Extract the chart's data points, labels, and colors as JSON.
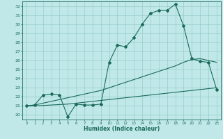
{
  "background_color": "#c0e8e8",
  "grid_color": "#98cccc",
  "line_color": "#1a6b5a",
  "xlabel": "Humidex (Indice chaleur)",
  "xlim": [
    -0.5,
    23.5
  ],
  "ylim": [
    19.5,
    32.5
  ],
  "xticks": [
    0,
    1,
    2,
    3,
    4,
    5,
    6,
    7,
    8,
    9,
    10,
    11,
    12,
    13,
    14,
    15,
    16,
    17,
    18,
    19,
    20,
    21,
    22,
    23
  ],
  "yticks": [
    20,
    21,
    22,
    23,
    24,
    25,
    26,
    27,
    28,
    29,
    30,
    31,
    32
  ],
  "series1_x": [
    0,
    1,
    2,
    3,
    4,
    5,
    6,
    7,
    8,
    9,
    10,
    11,
    12,
    13,
    14,
    15,
    16,
    17,
    18,
    19,
    20,
    21,
    22,
    23
  ],
  "series1_y": [
    21.0,
    21.1,
    22.2,
    22.3,
    22.2,
    19.8,
    21.2,
    21.1,
    21.1,
    21.2,
    25.8,
    27.7,
    27.5,
    28.5,
    30.0,
    31.2,
    31.5,
    31.5,
    32.2,
    29.8,
    26.2,
    25.9,
    25.8,
    22.8
  ],
  "series2_x": [
    0,
    1,
    2,
    3,
    4,
    5,
    6,
    7,
    8,
    9,
    10,
    11,
    12,
    13,
    14,
    15,
    16,
    17,
    18,
    19,
    20,
    21,
    22,
    23
  ],
  "series2_y": [
    21.0,
    21.1,
    21.3,
    21.5,
    21.7,
    21.9,
    22.1,
    22.3,
    22.5,
    22.7,
    23.0,
    23.3,
    23.6,
    23.9,
    24.2,
    24.5,
    24.8,
    25.1,
    25.4,
    25.8,
    26.1,
    26.2,
    26.0,
    25.8
  ],
  "series3_x": [
    0,
    1,
    2,
    3,
    4,
    5,
    6,
    7,
    8,
    9,
    10,
    11,
    12,
    13,
    14,
    15,
    16,
    17,
    18,
    19,
    20,
    21,
    22,
    23
  ],
  "series3_y": [
    21.0,
    21.0,
    21.05,
    21.1,
    21.15,
    21.2,
    21.3,
    21.4,
    21.5,
    21.6,
    21.7,
    21.8,
    21.9,
    22.0,
    22.1,
    22.2,
    22.3,
    22.4,
    22.5,
    22.6,
    22.7,
    22.8,
    22.9,
    23.0
  ]
}
